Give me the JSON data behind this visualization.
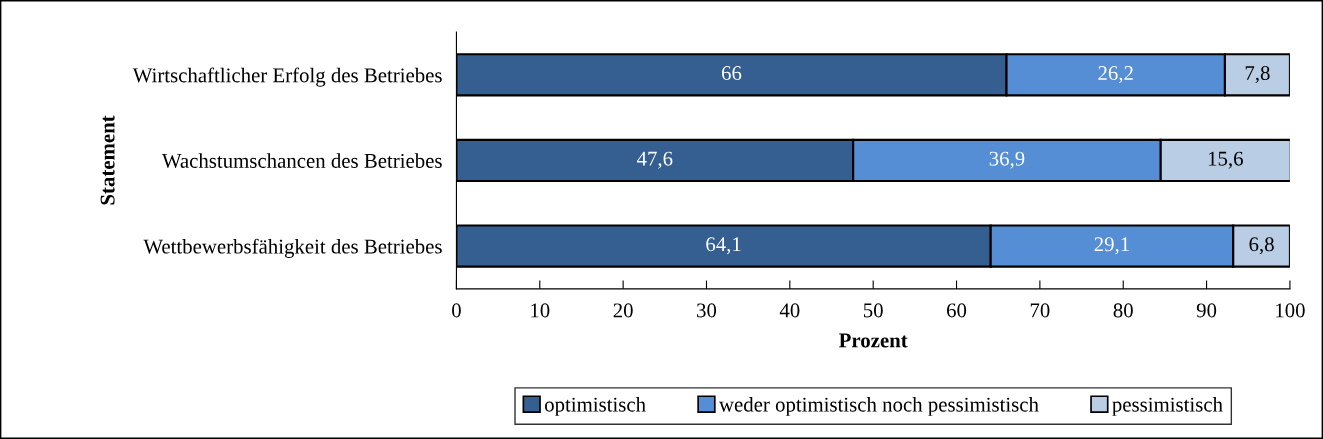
{
  "chart_data": {
    "type": "bar",
    "orientation": "horizontal",
    "stacked": true,
    "categories": [
      "Wirtschaftlicher Erfolg des Betriebes",
      "Wachstumschancen des Betriebes",
      "Wettbewerbsfähigkeit des Betriebes"
    ],
    "series": [
      {
        "name": "optimistisch",
        "color": "#355f91",
        "values": [
          66,
          47.6,
          64.1
        ],
        "value_labels": [
          "66",
          "47,6",
          "64,1"
        ]
      },
      {
        "name": "weder optimistisch noch pessimistisch",
        "color": "#558ed5",
        "values": [
          26.2,
          36.9,
          29.1
        ],
        "value_labels": [
          "26,2",
          "36,9",
          "29,1"
        ]
      },
      {
        "name": "pessimistisch",
        "color": "#b9cde5",
        "values": [
          7.8,
          15.6,
          6.8
        ],
        "value_labels": [
          "7,8",
          "15,6",
          "6,8"
        ]
      }
    ],
    "xlabel": "Prozent",
    "ylabel": "Statement",
    "xlim": [
      0,
      100
    ],
    "xticks": [
      0,
      10,
      20,
      30,
      40,
      50,
      60,
      70,
      80,
      90,
      100
    ],
    "grid": false,
    "legend": "bottom"
  }
}
